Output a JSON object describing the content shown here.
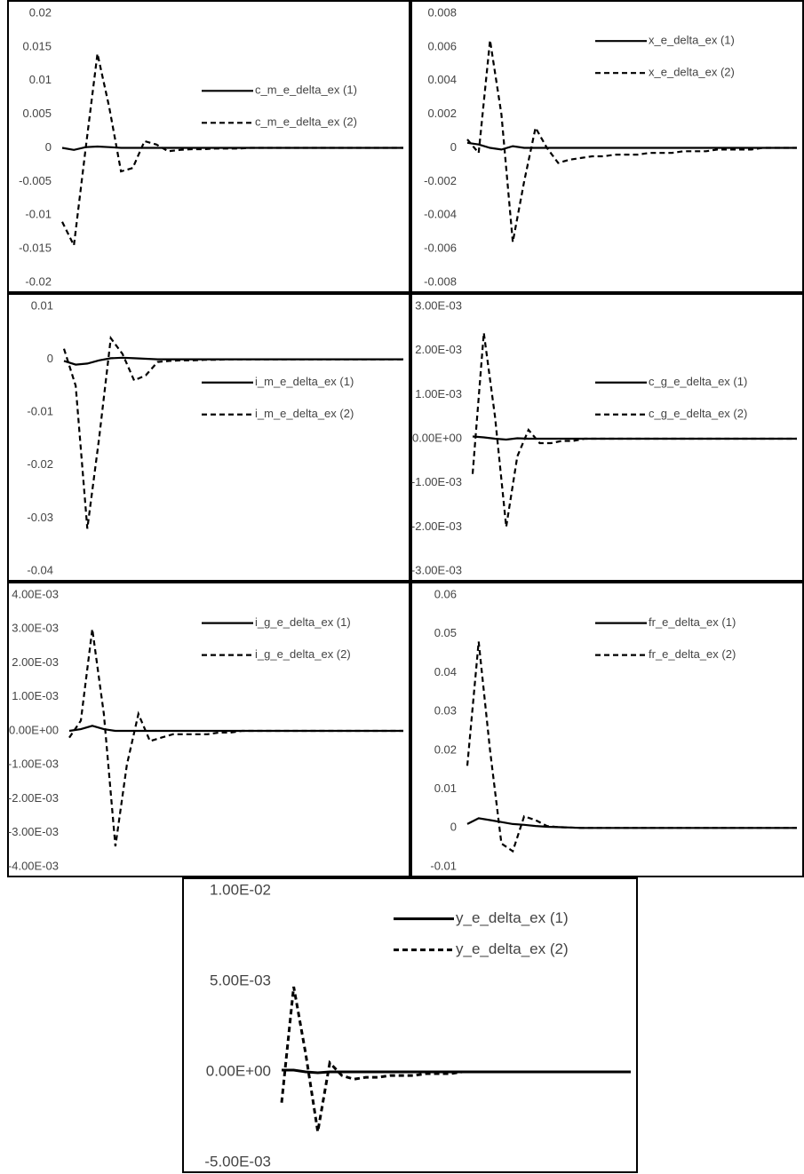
{
  "chart_data": [
    {
      "type": "line",
      "ylim": [
        -0.02,
        0.02
      ],
      "yticks": [
        0.02,
        0.015,
        0.01,
        0.005,
        0,
        -0.005,
        -0.01,
        -0.015,
        -0.02
      ],
      "legend": "center right",
      "series": [
        {
          "name": "c_m_e_delta_ex (1)",
          "color": "#000000",
          "dash": "solid",
          "values": [
            0,
            -0.0003,
            0.0001,
            0.0002,
            0.0001,
            0,
            0,
            0,
            0,
            0,
            0,
            0,
            0,
            0,
            0,
            0,
            0,
            0,
            0,
            0,
            0,
            0,
            0,
            0,
            0,
            0,
            0,
            0,
            0,
            0
          ]
        },
        {
          "name": "c_m_e_delta_ex (2)",
          "color": "#000000",
          "dash": "dashed",
          "values": [
            -0.011,
            -0.0145,
            0,
            0.014,
            0.006,
            -0.0035,
            -0.003,
            0.001,
            0.0005,
            -0.0005,
            -0.0003,
            -0.0002,
            -0.0002,
            -0.0001,
            -0.0001,
            -0.0001,
            0,
            0,
            0,
            0,
            0,
            0,
            0,
            0,
            0,
            0,
            0,
            0,
            0,
            0
          ]
        }
      ]
    },
    {
      "type": "line",
      "ylim": [
        -0.008,
        0.008
      ],
      "yticks": [
        0.008,
        0.006,
        0.004,
        0.002,
        0,
        -0.002,
        -0.004,
        -0.006,
        -0.008
      ],
      "legend": "upper right",
      "series": [
        {
          "name": "x_e_delta_ex (1)",
          "color": "#000000",
          "dash": "solid",
          "values": [
            0.0003,
            0.0002,
            0,
            -0.0001,
            0.0001,
            0,
            0,
            0,
            0,
            0,
            0,
            0,
            0,
            0,
            0,
            0,
            0,
            0,
            0,
            0,
            0,
            0,
            0,
            0,
            0,
            0,
            0,
            0,
            0,
            0
          ]
        },
        {
          "name": "x_e_delta_ex (2)",
          "color": "#000000",
          "dash": "dashed",
          "values": [
            0.0005,
            -0.0003,
            0.0064,
            0.002,
            -0.0056,
            -0.002,
            0.0012,
            0,
            -0.0009,
            -0.0007,
            -0.0006,
            -0.0005,
            -0.0005,
            -0.0004,
            -0.0004,
            -0.0004,
            -0.0003,
            -0.0003,
            -0.0003,
            -0.0002,
            -0.0002,
            -0.0002,
            -0.0001,
            -0.0001,
            -0.0001,
            -0.0001,
            0,
            0,
            0,
            0
          ]
        }
      ]
    },
    {
      "type": "line",
      "ylim": [
        -0.04,
        0.01
      ],
      "yticks": [
        0.01,
        0,
        -0.01,
        -0.02,
        -0.03,
        -0.04
      ],
      "legend": "center right",
      "series": [
        {
          "name": "i_m_e_delta_ex (1)",
          "color": "#000000",
          "dash": "solid",
          "values": [
            -0.0003,
            -0.001,
            -0.0008,
            -0.0002,
            0.0002,
            0.0003,
            0.0002,
            0.0001,
            0,
            0,
            0,
            0,
            0,
            0,
            0,
            0,
            0,
            0,
            0,
            0,
            0,
            0,
            0,
            0,
            0,
            0,
            0,
            0,
            0,
            0
          ]
        },
        {
          "name": "i_m_e_delta_ex (2)",
          "color": "#000000",
          "dash": "dashed",
          "values": [
            0.002,
            -0.005,
            -0.032,
            -0.015,
            0.004,
            0.001,
            -0.004,
            -0.003,
            -0.0005,
            -0.0003,
            -0.0002,
            -0.0002,
            -0.0001,
            -0.0001,
            0,
            0,
            0,
            0,
            0,
            0,
            0,
            0,
            0,
            0,
            0,
            0,
            0,
            0,
            0,
            0
          ]
        }
      ]
    },
    {
      "type": "line",
      "ylim": [
        -0.003,
        0.003
      ],
      "yticks": [
        {
          "value": 0.003,
          "label": "3.00E-03"
        },
        {
          "value": 0.002,
          "label": "2.00E-03"
        },
        {
          "value": 0.001,
          "label": "1.00E-03"
        },
        {
          "value": 0,
          "label": "0.00E+00"
        },
        {
          "value": -0.001,
          "label": "-1.00E-03"
        },
        {
          "value": -0.002,
          "label": "-2.00E-03"
        },
        {
          "value": -0.003,
          "label": "-3.00E-03"
        }
      ],
      "legend": "center right",
      "series": [
        {
          "name": "c_g_e_delta_ex (1)",
          "color": "#000000",
          "dash": "solid",
          "values": [
            5e-05,
            3e-05,
            0,
            -2e-05,
            1e-05,
            0,
            0,
            0,
            0,
            0,
            0,
            0,
            0,
            0,
            0,
            0,
            0,
            0,
            0,
            0,
            0,
            0,
            0,
            0,
            0,
            0,
            0,
            0,
            0,
            0
          ]
        },
        {
          "name": "c_g_e_delta_ex (2)",
          "color": "#000000",
          "dash": "dashed",
          "values": [
            -0.0008,
            0.0024,
            0.0005,
            -0.002,
            -0.0004,
            0.0002,
            -0.0001,
            -0.0001,
            -5e-05,
            -5e-05,
            0,
            0,
            0,
            0,
            0,
            0,
            0,
            0,
            0,
            0,
            0,
            0,
            0,
            0,
            0,
            0,
            0,
            0,
            0,
            0
          ]
        }
      ]
    },
    {
      "type": "line",
      "ylim": [
        -0.004,
        0.004
      ],
      "yticks": [
        {
          "value": 0.004,
          "label": "4.00E-03"
        },
        {
          "value": 0.003,
          "label": "3.00E-03"
        },
        {
          "value": 0.002,
          "label": "2.00E-03"
        },
        {
          "value": 0.001,
          "label": "1.00E-03"
        },
        {
          "value": 0,
          "label": "0.00E+00"
        },
        {
          "value": -0.001,
          "label": "-1.00E-03"
        },
        {
          "value": -0.002,
          "label": "-2.00E-03"
        },
        {
          "value": -0.003,
          "label": "-3.00E-03"
        },
        {
          "value": -0.004,
          "label": "-4.00E-03"
        }
      ],
      "legend": "upper right",
      "series": [
        {
          "name": "i_g_e_delta_ex (1)",
          "color": "#000000",
          "dash": "solid",
          "values": [
            0,
            5e-05,
            0.00015,
            5e-05,
            0,
            0,
            0,
            0,
            0,
            0,
            0,
            0,
            0,
            0,
            0,
            0,
            0,
            0,
            0,
            0,
            0,
            0,
            0,
            0,
            0,
            0,
            0,
            0,
            0,
            0
          ]
        },
        {
          "name": "i_g_e_delta_ex (2)",
          "color": "#000000",
          "dash": "dashed",
          "values": [
            -0.0002,
            0.0003,
            0.003,
            0.0005,
            -0.0034,
            -0.001,
            0.0005,
            -0.0003,
            -0.0002,
            -0.0001,
            -0.0001,
            -0.0001,
            -0.0001,
            -5e-05,
            -5e-05,
            0,
            0,
            0,
            0,
            0,
            0,
            0,
            0,
            0,
            0,
            0,
            0,
            0,
            0,
            0
          ]
        }
      ]
    },
    {
      "type": "line",
      "ylim": [
        -0.01,
        0.06
      ],
      "yticks": [
        0.06,
        0.05,
        0.04,
        0.03,
        0.02,
        0.01,
        0,
        -0.01
      ],
      "legend": "upper right",
      "series": [
        {
          "name": "fr_e_delta_ex (1)",
          "color": "#000000",
          "dash": "solid",
          "values": [
            0.001,
            0.0025,
            0.002,
            0.0015,
            0.001,
            0.0008,
            0.0005,
            0.0003,
            0.0002,
            0.0001,
            0,
            0,
            0,
            0,
            0,
            0,
            0,
            0,
            0,
            0,
            0,
            0,
            0,
            0,
            0,
            0,
            0,
            0,
            0,
            0
          ]
        },
        {
          "name": "fr_e_delta_ex (2)",
          "color": "#000000",
          "dash": "dashed",
          "values": [
            0.016,
            0.048,
            0.02,
            -0.004,
            -0.006,
            0.003,
            0.002,
            0.0005,
            0.0002,
            0.0001,
            0,
            0,
            0,
            0,
            0,
            0,
            0,
            0,
            0,
            0,
            0,
            0,
            0,
            0,
            0,
            0,
            0,
            0,
            0,
            0
          ]
        }
      ]
    },
    {
      "type": "line",
      "ylim": [
        -0.005,
        0.01
      ],
      "yticks": [
        {
          "value": 0.01,
          "label": "1.00E-02"
        },
        {
          "value": 0.005,
          "label": "5.00E-03"
        },
        {
          "value": 0,
          "label": "0.00E+00"
        },
        {
          "value": -0.005,
          "label": "-5.00E-03"
        }
      ],
      "legend": "upper right",
      "series": [
        {
          "name": "y_e_delta_ex (1)",
          "color": "#000000",
          "dash": "solid",
          "values": [
            0.0001,
            0.0001,
            0,
            -5e-05,
            0,
            0,
            0,
            0,
            0,
            0,
            0,
            0,
            0,
            0,
            0,
            0,
            0,
            0,
            0,
            0,
            0,
            0,
            0,
            0,
            0,
            0,
            0,
            0,
            0,
            0
          ]
        },
        {
          "name": "y_e_delta_ex (2)",
          "color": "#000000",
          "dash": "dashed",
          "values": [
            -0.0017,
            0.0047,
            0.001,
            -0.0033,
            0.0005,
            -0.0002,
            -0.0004,
            -0.0003,
            -0.0003,
            -0.0002,
            -0.0002,
            -0.0002,
            -0.0001,
            -0.0001,
            -0.0001,
            0,
            0,
            0,
            0,
            0,
            0,
            0,
            0,
            0,
            0,
            0,
            0,
            0,
            0,
            0
          ]
        }
      ]
    }
  ]
}
